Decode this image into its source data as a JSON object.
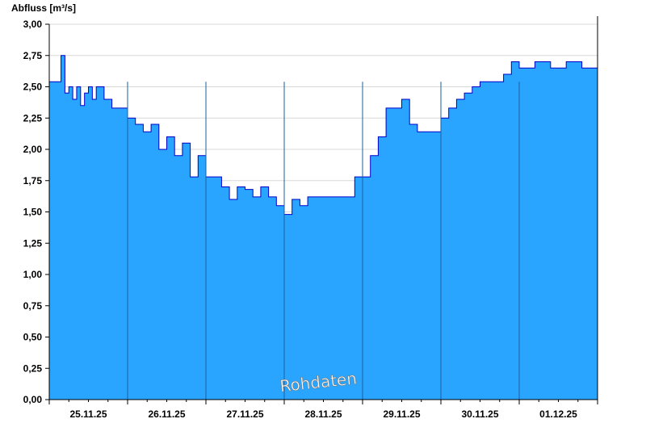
{
  "colors": {
    "area": "#2aa5ff",
    "line": "#0000cc",
    "axis": "#000000",
    "grid": "#d8d8d8",
    "background": "#ffffff"
  },
  "chart_data": {
    "type": "area",
    "ylabel": "Abfluss [m³/s]",
    "ylim": [
      0,
      3.0
    ],
    "y_ticks": [
      "0,00",
      "0,25",
      "0,50",
      "0,75",
      "1,00",
      "1,25",
      "1,50",
      "1,75",
      "2,00",
      "2,25",
      "2,50",
      "2,75",
      "3,00"
    ],
    "x_categories": [
      "25.11.25",
      "26.11.25",
      "27.11.25",
      "28.11.25",
      "29.11.25",
      "30.11.25",
      "01.12.25"
    ],
    "x_range_days": [
      0,
      7
    ],
    "grid": "horizontal",
    "watermark": "Rohdaten",
    "series": [
      {
        "x": [
          0,
          0.12,
          0.15,
          0.2,
          0.25,
          0.3,
          0.35,
          0.4,
          0.45,
          0.5,
          0.55,
          0.6,
          0.7,
          0.8,
          0.9,
          1.0,
          1.1,
          1.2,
          1.3,
          1.4,
          1.5,
          1.6,
          1.7,
          1.8,
          1.9,
          2.0,
          2.1,
          2.2,
          2.3,
          2.4,
          2.5,
          2.6,
          2.7,
          2.8,
          2.9,
          3.0,
          3.1,
          3.2,
          3.3,
          3.4,
          3.5,
          3.6,
          3.7,
          3.8,
          3.9,
          4.0,
          4.1,
          4.2,
          4.3,
          4.4,
          4.5,
          4.6,
          4.7,
          4.8,
          4.9,
          5.0,
          5.1,
          5.2,
          5.3,
          5.4,
          5.5,
          5.6,
          5.7,
          5.8,
          5.9,
          6.0,
          6.2,
          6.4,
          6.6,
          6.8,
          7.0
        ],
        "y": [
          2.54,
          2.54,
          2.75,
          2.45,
          2.5,
          2.4,
          2.5,
          2.35,
          2.45,
          2.5,
          2.4,
          2.5,
          2.4,
          2.33,
          2.33,
          2.25,
          2.2,
          2.14,
          2.2,
          2.0,
          2.1,
          1.95,
          2.05,
          1.78,
          1.95,
          1.78,
          1.78,
          1.7,
          1.6,
          1.7,
          1.68,
          1.62,
          1.7,
          1.62,
          1.55,
          1.48,
          1.6,
          1.55,
          1.62,
          1.62,
          1.62,
          1.62,
          1.62,
          1.62,
          1.78,
          1.78,
          1.95,
          2.1,
          2.33,
          2.33,
          2.4,
          2.2,
          2.14,
          2.14,
          2.14,
          2.25,
          2.33,
          2.4,
          2.45,
          2.5,
          2.54,
          2.54,
          2.54,
          2.6,
          2.7,
          2.65,
          2.7,
          2.65,
          2.7,
          2.65,
          2.7
        ]
      }
    ]
  }
}
